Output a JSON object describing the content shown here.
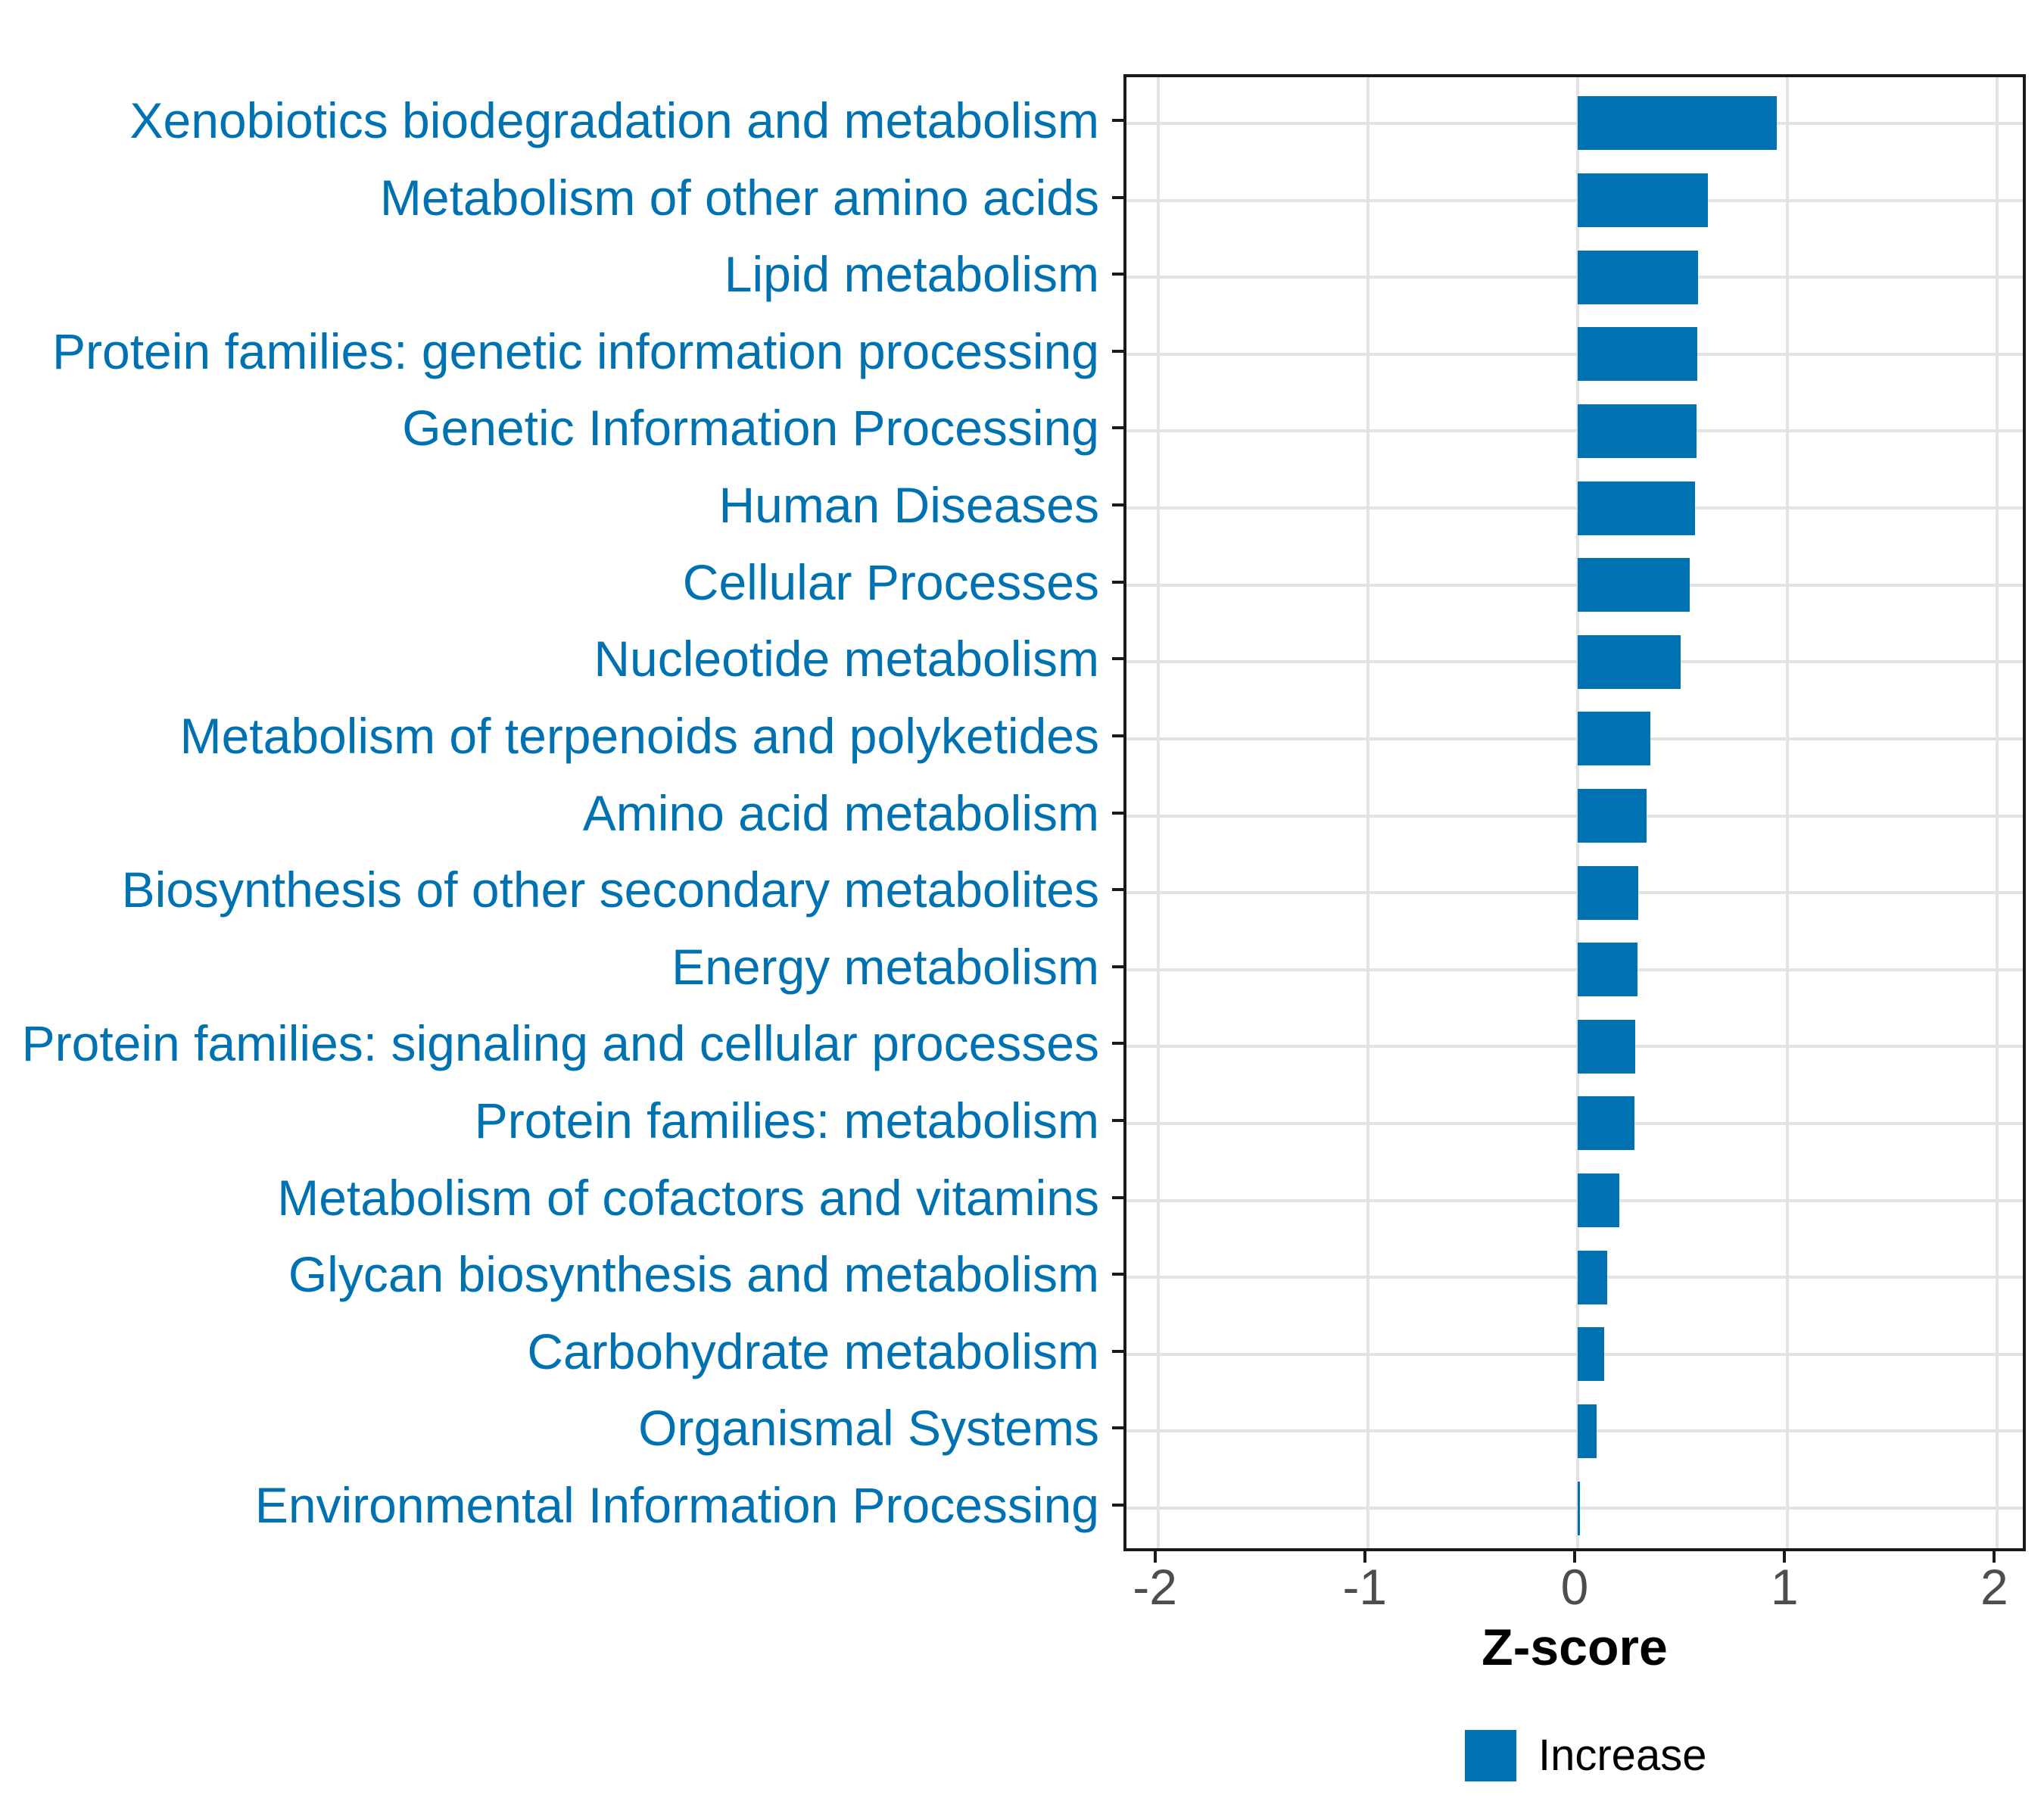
{
  "chart_data": {
    "type": "bar",
    "orientation": "horizontal",
    "title": "",
    "xlabel": "Z-score",
    "ylabel": "",
    "xlim": [
      -2.15,
      2.15
    ],
    "x_ticks": [
      -2,
      -1,
      0,
      1,
      2
    ],
    "x_tick_labels": [
      "-2",
      "-1",
      "0",
      "1",
      "2"
    ],
    "grid": "major-only",
    "legend_position": "bottom",
    "categories": [
      "Xenobiotics biodegradation and metabolism",
      "Metabolism of other amino acids",
      "Lipid metabolism",
      "Protein families: genetic information processing",
      "Genetic Information Processing",
      "Human Diseases",
      "Cellular Processes",
      "Nucleotide metabolism",
      "Metabolism of terpenoids and polyketides",
      "Amino acid metabolism",
      "Biosynthesis of other secondary metabolites",
      "Energy metabolism",
      "Protein families: signaling and cellular processes",
      "Protein families: metabolism",
      "Metabolism of cofactors and vitamins",
      "Glycan biosynthesis and metabolism",
      "Carbohydrate metabolism",
      "Organismal Systems",
      "Environmental Information Processing"
    ],
    "series": [
      {
        "name": "Increase",
        "values": [
          0.95,
          0.62,
          0.575,
          0.57,
          0.565,
          0.56,
          0.535,
          0.49,
          0.345,
          0.33,
          0.29,
          0.285,
          0.275,
          0.27,
          0.2,
          0.14,
          0.125,
          0.09,
          0.01
        ]
      }
    ],
    "legend": [
      {
        "label": "Increase",
        "color": "#0072B2"
      }
    ],
    "colors": {
      "bar": "#0072B2",
      "category_label": "#0072B2",
      "tick_label": "#4D4D4D",
      "grid": "#E3E3E3",
      "panel_border": "#1A1A1A",
      "tick_mark": "#1A1A1A",
      "background": "#FFFFFF"
    }
  }
}
